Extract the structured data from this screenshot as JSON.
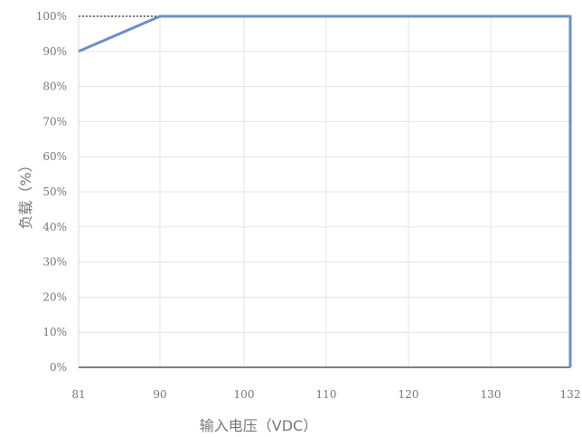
{
  "chart_data": {
    "type": "line",
    "xlabel": "输入电压（VDC）",
    "ylabel": "负载（%）",
    "xlim": [
      81,
      132
    ],
    "ylim": [
      0,
      100
    ],
    "x_ticks": [
      81,
      90,
      100,
      110,
      120,
      130,
      132
    ],
    "x_tick_labels": [
      "81",
      "90",
      "100",
      "110",
      "120",
      "130",
      "132"
    ],
    "y_ticks": [
      0,
      10,
      20,
      30,
      40,
      50,
      60,
      70,
      80,
      90,
      100
    ],
    "y_tick_labels": [
      "0%",
      "10%",
      "20%",
      "30%",
      "40%",
      "50%",
      "60%",
      "70%",
      "80%",
      "90%",
      "100%"
    ],
    "grid": true,
    "legend": "none",
    "series": [
      {
        "x": [
          81,
          90,
          132,
          132
        ],
        "y": [
          90,
          100,
          100,
          0
        ],
        "color": "#6d8fc6"
      }
    ],
    "reference_line": {
      "x": [
        81,
        90
      ],
      "y": [
        100,
        100
      ],
      "style": "dashed",
      "color": "#333333"
    }
  }
}
